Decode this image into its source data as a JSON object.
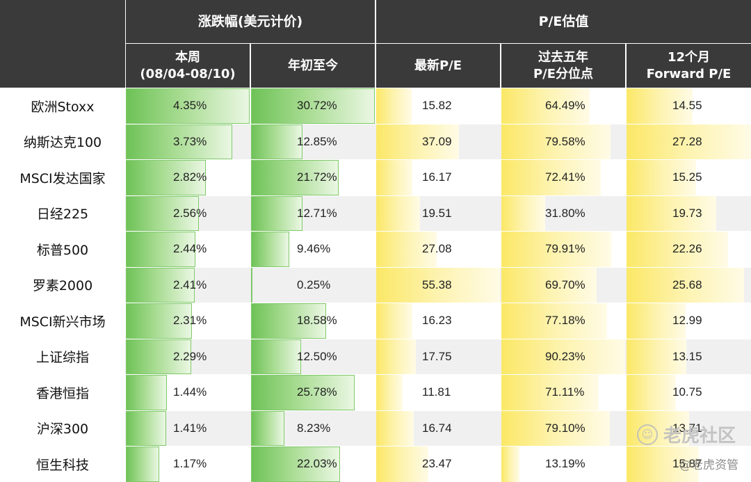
{
  "header": {
    "group_change": "涨跌幅(美元计价)",
    "group_pe": "P/E估值",
    "columns": [
      {
        "line1": "本周",
        "line2": "(08/04-08/10)"
      },
      {
        "line1": "年初至今",
        "line2": ""
      },
      {
        "line1": "最新P/E",
        "line2": ""
      },
      {
        "line1": "过去五年",
        "line2": "P/E分位点"
      },
      {
        "line1": "12个月",
        "line2": "Forward P/E"
      }
    ]
  },
  "chart_data": {
    "type": "table",
    "columns": [
      "本周(08/04-08/10)",
      "年初至今",
      "最新P/E",
      "过去五年P/E分位点",
      "12个月Forward P/E"
    ],
    "rows": [
      {
        "name": "欧洲Stoxx",
        "week": "4.35%",
        "ytd": "30.72%",
        "pe": "15.82",
        "pct": "64.49%",
        "fwd": "14.55",
        "v": [
          4.35,
          30.72,
          15.82,
          64.49,
          14.55
        ]
      },
      {
        "name": "纳斯达克100",
        "week": "3.73%",
        "ytd": "12.85%",
        "pe": "37.09",
        "pct": "79.58%",
        "fwd": "27.28",
        "v": [
          3.73,
          12.85,
          37.09,
          79.58,
          27.28
        ]
      },
      {
        "name": "MSCI发达国家",
        "week": "2.82%",
        "ytd": "21.72%",
        "pe": "16.17",
        "pct": "72.41%",
        "fwd": "15.25",
        "v": [
          2.82,
          21.72,
          16.17,
          72.41,
          15.25
        ]
      },
      {
        "name": "日经225",
        "week": "2.56%",
        "ytd": "12.71%",
        "pe": "19.51",
        "pct": "31.80%",
        "fwd": "19.73",
        "v": [
          2.56,
          12.71,
          19.51,
          31.8,
          19.73
        ]
      },
      {
        "name": "标普500",
        "week": "2.44%",
        "ytd": "9.46%",
        "pe": "27.08",
        "pct": "79.91%",
        "fwd": "22.26",
        "v": [
          2.44,
          9.46,
          27.08,
          79.91,
          22.26
        ]
      },
      {
        "name": "罗素2000",
        "week": "2.41%",
        "ytd": "0.25%",
        "pe": "55.38",
        "pct": "69.70%",
        "fwd": "25.68",
        "v": [
          2.41,
          0.25,
          55.38,
          69.7,
          25.68
        ]
      },
      {
        "name": "MSCI新兴市场",
        "week": "2.31%",
        "ytd": "18.58%",
        "pe": "16.23",
        "pct": "77.18%",
        "fwd": "12.99",
        "v": [
          2.31,
          18.58,
          16.23,
          77.18,
          12.99
        ]
      },
      {
        "name": "上证综指",
        "week": "2.29%",
        "ytd": "12.50%",
        "pe": "17.75",
        "pct": "90.23%",
        "fwd": "13.15",
        "v": [
          2.29,
          12.5,
          17.75,
          90.23,
          13.15
        ]
      },
      {
        "name": "香港恒指",
        "week": "1.44%",
        "ytd": "25.78%",
        "pe": "11.81",
        "pct": "71.11%",
        "fwd": "10.75",
        "v": [
          1.44,
          25.78,
          11.81,
          71.11,
          10.75
        ]
      },
      {
        "name": "沪深300",
        "week": "1.41%",
        "ytd": "8.23%",
        "pe": "16.74",
        "pct": "79.10%",
        "fwd": "13.71",
        "v": [
          1.41,
          8.23,
          16.74,
          79.1,
          13.71
        ]
      },
      {
        "name": "恒生科技",
        "week": "1.17%",
        "ytd": "22.03%",
        "pe": "23.47",
        "pct": "13.19%",
        "fwd": "15.87",
        "v": [
          1.17,
          22.03,
          23.47,
          13.19,
          15.87
        ]
      }
    ],
    "col_max": [
      4.35,
      30.72,
      55.38,
      90.23,
      27.28
    ],
    "bar_colors": [
      "green",
      "green",
      "yellow",
      "yellow",
      "yellow"
    ]
  },
  "watermark": {
    "brand": "老虎社区",
    "sub": "@老虎资管"
  }
}
